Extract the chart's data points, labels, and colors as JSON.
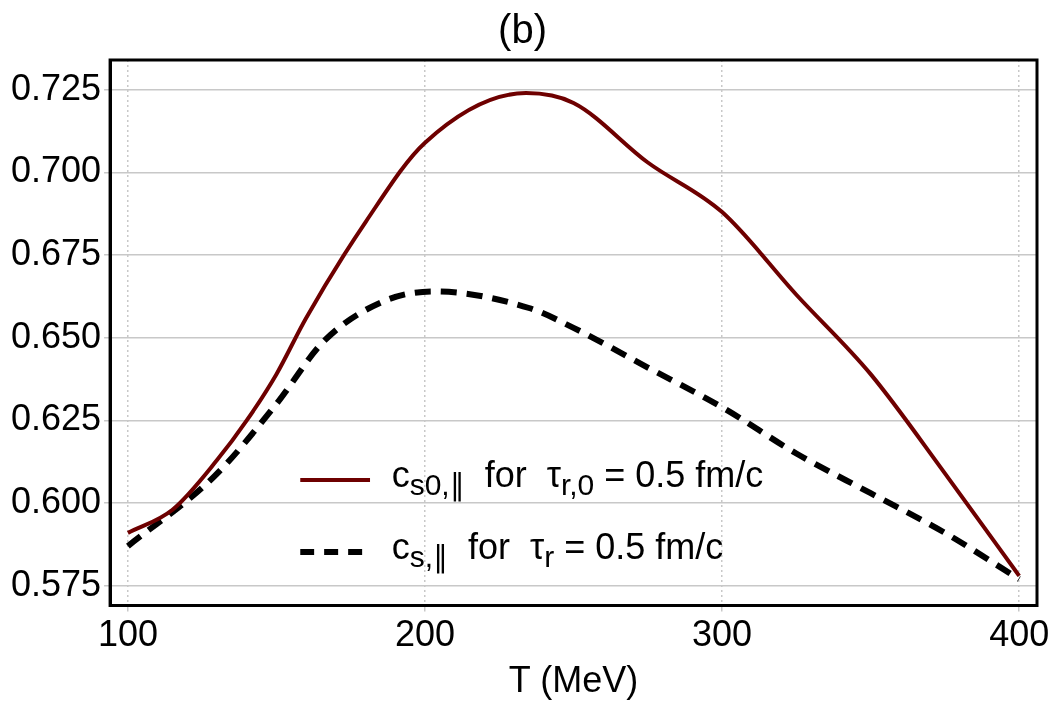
{
  "chart_data": {
    "type": "line",
    "title": "(b)",
    "xlabel": "T (MeV)",
    "xlim": [
      94,
      406
    ],
    "xticks": [
      100,
      200,
      300,
      400
    ],
    "ylim": [
      0.569,
      0.734
    ],
    "yticks": [
      0.575,
      {
        "value": 0.6,
        "label": "0.600"
      },
      0.625,
      {
        "value": 0.65,
        "label": "0.650"
      },
      0.675,
      {
        "value": 0.7,
        "label": "0.700"
      },
      0.725
    ],
    "grid": true,
    "legend": "bottom",
    "marker": "none",
    "series": [
      {
        "name": "c$_{s0,∥}$  for  τ$_{r,0}$ = 0.5 fm/c",
        "color": "#6e0000",
        "line_style": "solid",
        "x": [
          100,
          115,
          130,
          140,
          150,
          160,
          180,
          200,
          234,
          250,
          275,
          300,
          325,
          350,
          375,
          400
        ],
        "values": [
          0.591,
          0.598,
          0.613,
          0.625,
          0.639,
          0.656,
          0.685,
          0.709,
          0.724,
          0.721,
          0.703,
          0.688,
          0.663,
          0.639,
          0.609,
          0.578
        ]
      },
      {
        "name": "c$_{s,∥}$  for  τ$_{r}$ = 0.5 fm/c",
        "color": "#000000",
        "line_style": "dashed",
        "x": [
          100,
          129,
          150,
          166,
          186,
          203,
          235,
          250,
          275,
          300,
          325,
          350,
          375,
          400
        ],
        "values": [
          0.587,
          0.608,
          0.63,
          0.649,
          0.661,
          0.664,
          0.659,
          0.653,
          0.641,
          0.629,
          0.615,
          0.603,
          0.591,
          0.577
        ]
      }
    ]
  }
}
